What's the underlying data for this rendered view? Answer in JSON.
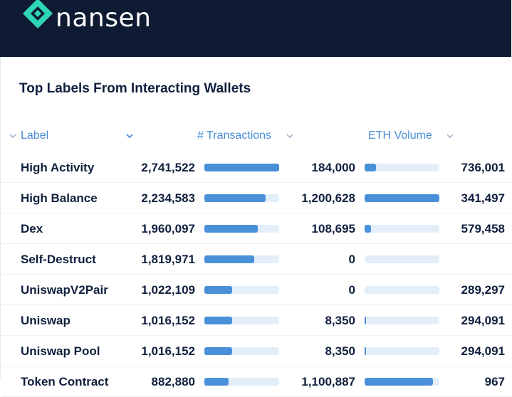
{
  "brand": {
    "name": "nansen",
    "mark_color": "#2fd6b5",
    "header_bg": "#0e1b33"
  },
  "panel": {
    "title": "Top Labels From Interacting Wallets"
  },
  "columns": {
    "label": "Label",
    "transactions": "# Transactions",
    "eth_volume": "ETH Volume"
  },
  "accent": "#4a90d9",
  "rows": [
    {
      "label": "High Activity",
      "transactions": "2,741,522",
      "tx_fraction": 1.0,
      "eth_volume": "184,000",
      "vol_fraction": 0.15,
      "extra": "736,001"
    },
    {
      "label": "High Balance",
      "transactions": "2,234,583",
      "tx_fraction": 0.815,
      "eth_volume": "1,200,628",
      "vol_fraction": 1.0,
      "extra": "341,497"
    },
    {
      "label": "Dex",
      "transactions": "1,960,097",
      "tx_fraction": 0.715,
      "eth_volume": "108,695",
      "vol_fraction": 0.09,
      "extra": "579,458"
    },
    {
      "label": "Self-Destruct",
      "transactions": "1,819,971",
      "tx_fraction": 0.664,
      "eth_volume": "0",
      "vol_fraction": 0.0,
      "extra": ""
    },
    {
      "label": "UniswapV2Pair",
      "transactions": "1,022,109",
      "tx_fraction": 0.373,
      "eth_volume": "0",
      "vol_fraction": 0.0,
      "extra": "289,297"
    },
    {
      "label": "Uniswap",
      "transactions": "1,016,152",
      "tx_fraction": 0.371,
      "eth_volume": "8,350",
      "vol_fraction": 0.007,
      "extra": "294,091"
    },
    {
      "label": "Uniswap Pool",
      "transactions": "1,016,152",
      "tx_fraction": 0.371,
      "eth_volume": "8,350",
      "vol_fraction": 0.007,
      "extra": "294,091"
    },
    {
      "label": "Token Contract",
      "transactions": "882,880",
      "tx_fraction": 0.322,
      "eth_volume": "1,100,887",
      "vol_fraction": 0.917,
      "extra": "967"
    }
  ]
}
